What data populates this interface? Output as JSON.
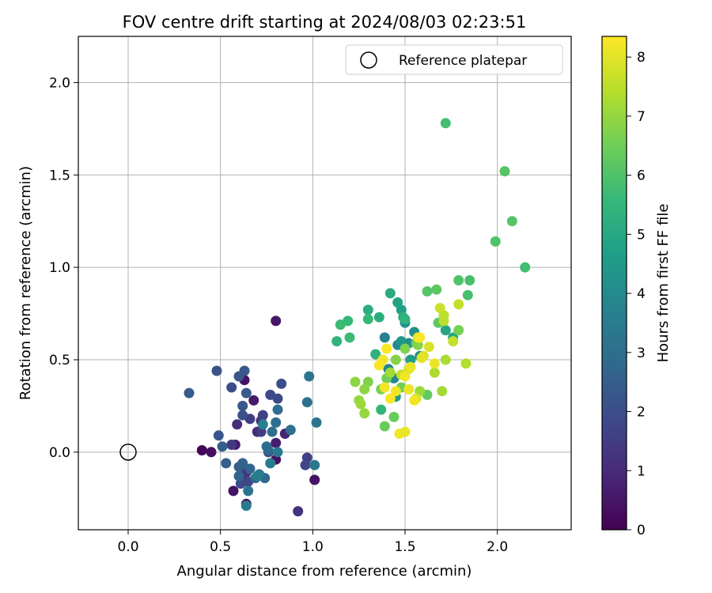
{
  "chart_data": {
    "type": "scatter",
    "title": "FOV centre drift starting at 2024/08/03 02:23:51",
    "xlabel": "Angular distance from reference (arcmin)",
    "ylabel": "Rotation from reference (arcmin)",
    "xlim": [
      -0.27,
      2.4
    ],
    "ylim": [
      -0.42,
      2.25
    ],
    "x_ticks": [
      0.0,
      0.5,
      1.0,
      1.5,
      2.0
    ],
    "x_tick_labels": [
      "0.0",
      "0.5",
      "1.0",
      "1.5",
      "2.0"
    ],
    "y_ticks": [
      0.0,
      0.5,
      1.0,
      1.5,
      2.0
    ],
    "y_tick_labels": [
      "0.0",
      "0.5",
      "1.0",
      "1.5",
      "2.0"
    ],
    "grid": true,
    "legend": {
      "position": "upper-right",
      "entries": [
        {
          "label": "Reference platepar",
          "marker": "open-circle"
        }
      ]
    },
    "reference_point": {
      "x": 0.0,
      "y": 0.0
    },
    "colorbar": {
      "label": "Hours from first FF file",
      "range": [
        0,
        8.35
      ],
      "ticks": [
        0,
        1,
        2,
        3,
        4,
        5,
        6,
        7,
        8
      ],
      "tick_labels": [
        "0",
        "1",
        "2",
        "3",
        "4",
        "5",
        "6",
        "7",
        "8"
      ],
      "colormap": "viridis",
      "colormap_stops": [
        "#440154",
        "#482878",
        "#3e4989",
        "#31688e",
        "#26828e",
        "#1f9e89",
        "#35b779",
        "#6ece58",
        "#b5de2b",
        "#fde725"
      ]
    },
    "series": [
      {
        "columns": [
          "x",
          "y",
          "hours"
        ],
        "points": [
          [
            0.4,
            0.01,
            0.1
          ],
          [
            0.45,
            0.0,
            0.3
          ],
          [
            0.57,
            -0.21,
            0.4
          ],
          [
            0.8,
            0.71,
            0.5
          ],
          [
            0.58,
            0.04,
            0.6
          ],
          [
            0.63,
            0.39,
            0.4
          ],
          [
            0.68,
            0.28,
            0.6
          ],
          [
            0.64,
            -0.28,
            0.5
          ],
          [
            0.8,
            -0.04,
            0.4
          ],
          [
            1.01,
            -0.15,
            0.4
          ],
          [
            0.85,
            0.1,
            0.8
          ],
          [
            0.8,
            0.05,
            0.7
          ],
          [
            0.62,
            -0.13,
            0.9
          ],
          [
            0.7,
            0.11,
            1.0
          ],
          [
            0.59,
            0.15,
            1.1
          ],
          [
            0.92,
            -0.32,
            1.2
          ],
          [
            0.72,
            0.17,
            1.1
          ],
          [
            0.64,
            -0.11,
            1.3
          ],
          [
            0.56,
            0.04,
            1.4
          ],
          [
            0.66,
            0.18,
            1.5
          ],
          [
            0.72,
            0.11,
            1.5
          ],
          [
            0.73,
            0.2,
            1.6
          ],
          [
            0.97,
            -0.03,
            1.6
          ],
          [
            0.76,
            0.0,
            1.7
          ],
          [
            0.65,
            -0.16,
            1.8
          ],
          [
            0.61,
            -0.17,
            1.9
          ],
          [
            0.96,
            -0.07,
            1.8
          ],
          [
            0.77,
            0.31,
            1.9
          ],
          [
            0.81,
            0.29,
            1.9
          ],
          [
            0.83,
            0.37,
            2.0
          ],
          [
            0.56,
            0.35,
            2.0
          ],
          [
            0.62,
            0.2,
            2.1
          ],
          [
            0.48,
            0.44,
            2.1
          ],
          [
            0.49,
            0.09,
            2.2
          ],
          [
            0.6,
            0.41,
            2.2
          ],
          [
            0.63,
            0.44,
            2.3
          ],
          [
            0.62,
            0.25,
            2.3
          ],
          [
            0.64,
            0.32,
            2.4
          ],
          [
            0.33,
            0.32,
            2.4
          ],
          [
            0.51,
            0.03,
            2.5
          ],
          [
            0.53,
            -0.06,
            2.5
          ],
          [
            0.6,
            -0.08,
            2.6
          ],
          [
            0.62,
            -0.06,
            2.6
          ],
          [
            0.66,
            -0.09,
            2.7
          ],
          [
            0.6,
            -0.13,
            2.7
          ],
          [
            0.69,
            -0.14,
            2.8
          ],
          [
            0.74,
            -0.14,
            2.8
          ],
          [
            0.75,
            0.03,
            2.9
          ],
          [
            0.76,
            0.01,
            2.9
          ],
          [
            0.8,
            0.16,
            3.0
          ],
          [
            0.81,
            0.23,
            3.0
          ],
          [
            0.78,
            0.11,
            3.0
          ],
          [
            0.88,
            0.12,
            3.1
          ],
          [
            0.97,
            0.27,
            3.1
          ],
          [
            0.98,
            0.41,
            3.2
          ],
          [
            1.01,
            -0.07,
            3.3
          ],
          [
            1.02,
            0.16,
            3.3
          ],
          [
            0.65,
            -0.21,
            3.2
          ],
          [
            0.71,
            -0.12,
            3.4
          ],
          [
            0.77,
            -0.06,
            3.5
          ],
          [
            0.64,
            -0.29,
            3.5
          ],
          [
            0.81,
            0.0,
            3.4
          ],
          [
            0.7,
            -0.13,
            3.6
          ],
          [
            0.73,
            0.15,
            3.6
          ],
          [
            1.39,
            0.62,
            3.7
          ],
          [
            1.41,
            0.45,
            3.8
          ],
          [
            1.44,
            0.4,
            3.9
          ],
          [
            1.46,
            0.58,
            4.0
          ],
          [
            1.52,
            0.59,
            4.1
          ],
          [
            1.55,
            0.65,
            4.2
          ],
          [
            1.58,
            0.52,
            4.2
          ],
          [
            1.5,
            0.7,
            4.3
          ],
          [
            1.48,
            0.6,
            4.4
          ],
          [
            1.45,
            0.3,
            4.5
          ],
          [
            1.53,
            0.5,
            4.6
          ],
          [
            1.48,
            0.77,
            4.7
          ],
          [
            1.46,
            0.81,
            4.8
          ],
          [
            1.72,
            0.66,
            4.9
          ],
          [
            1.76,
            0.62,
            5.0
          ],
          [
            1.42,
            0.86,
            5.1
          ],
          [
            1.3,
            0.77,
            5.2
          ],
          [
            1.36,
            0.73,
            5.2
          ],
          [
            1.49,
            0.73,
            5.3
          ],
          [
            1.34,
            0.53,
            5.3
          ],
          [
            1.13,
            0.6,
            5.4
          ],
          [
            1.5,
            0.72,
            5.4
          ],
          [
            1.37,
            0.23,
            5.5
          ],
          [
            1.3,
            0.72,
            5.6
          ],
          [
            1.19,
            0.71,
            5.6
          ],
          [
            1.15,
            0.69,
            5.7
          ],
          [
            1.2,
            0.62,
            5.7
          ],
          [
            1.72,
            1.78,
            5.8
          ],
          [
            2.15,
            1.0,
            5.8
          ],
          [
            1.84,
            0.85,
            5.9
          ],
          [
            1.85,
            0.93,
            5.9
          ],
          [
            1.79,
            0.93,
            6.0
          ],
          [
            1.99,
            1.14,
            6.0
          ],
          [
            2.04,
            1.52,
            6.1
          ],
          [
            2.08,
            1.25,
            6.1
          ],
          [
            1.62,
            0.87,
            6.1
          ],
          [
            1.67,
            0.88,
            6.2
          ],
          [
            1.68,
            0.7,
            6.2
          ],
          [
            1.62,
            0.31,
            6.3
          ],
          [
            1.56,
            0.59,
            6.3
          ],
          [
            1.39,
            0.14,
            6.4
          ],
          [
            1.44,
            0.19,
            6.4
          ],
          [
            1.48,
            0.35,
            6.5
          ],
          [
            1.4,
            0.4,
            6.5
          ],
          [
            1.79,
            0.66,
            6.6
          ],
          [
            1.37,
            0.34,
            6.6
          ],
          [
            1.3,
            0.38,
            6.7
          ],
          [
            1.5,
            0.56,
            6.7
          ],
          [
            1.57,
            0.58,
            6.8
          ],
          [
            1.45,
            0.5,
            6.8
          ],
          [
            1.28,
            0.34,
            6.9
          ],
          [
            1.23,
            0.38,
            6.9
          ],
          [
            1.25,
            0.28,
            7.0
          ],
          [
            1.28,
            0.21,
            7.0
          ],
          [
            1.26,
            0.26,
            7.1
          ],
          [
            1.58,
            0.33,
            7.1
          ],
          [
            1.7,
            0.33,
            7.2
          ],
          [
            1.42,
            0.43,
            7.2
          ],
          [
            1.66,
            0.43,
            7.3
          ],
          [
            1.72,
            0.5,
            7.3
          ],
          [
            1.83,
            0.48,
            7.4
          ],
          [
            1.71,
            0.74,
            7.5
          ],
          [
            1.71,
            0.71,
            7.5
          ],
          [
            1.79,
            0.8,
            7.6
          ],
          [
            1.76,
            0.6,
            7.6
          ],
          [
            1.69,
            0.78,
            7.7
          ],
          [
            1.48,
            0.42,
            7.7
          ],
          [
            1.52,
            0.45,
            7.8
          ],
          [
            1.56,
            0.29,
            7.8
          ],
          [
            1.6,
            0.52,
            7.9
          ],
          [
            1.63,
            0.57,
            7.9
          ],
          [
            1.57,
            0.62,
            8.0
          ],
          [
            1.59,
            0.51,
            8.0
          ],
          [
            1.66,
            0.48,
            8.1
          ],
          [
            1.53,
            0.46,
            8.1
          ],
          [
            1.5,
            0.41,
            8.2
          ],
          [
            1.38,
            0.5,
            8.2
          ],
          [
            1.45,
            0.33,
            8.2
          ],
          [
            1.4,
            0.56,
            8.3
          ],
          [
            1.36,
            0.47,
            8.3
          ],
          [
            1.42,
            0.29,
            8.3
          ],
          [
            1.47,
            0.1,
            8.2
          ],
          [
            1.5,
            0.11,
            8.1
          ],
          [
            1.58,
            0.62,
            8.3
          ],
          [
            1.55,
            0.28,
            8.2
          ],
          [
            1.52,
            0.34,
            8.1
          ],
          [
            1.39,
            0.35,
            8.2
          ]
        ]
      }
    ]
  }
}
